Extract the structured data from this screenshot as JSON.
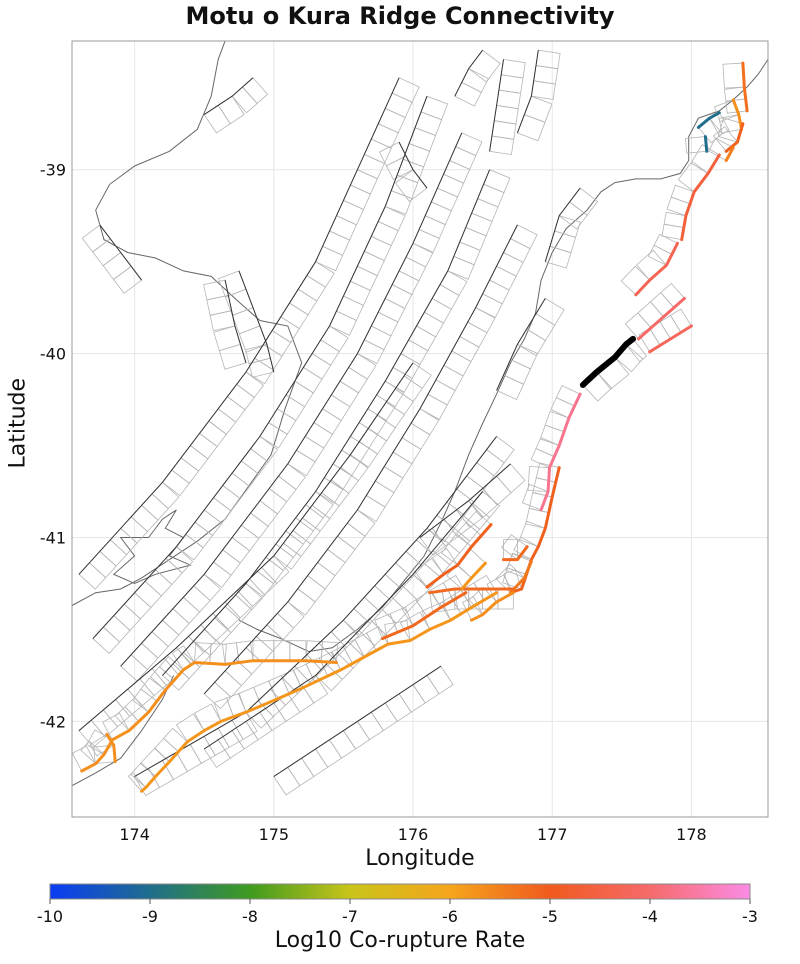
{
  "title": "Motu o Kura Ridge Connectivity",
  "xlabel": "Longitude",
  "ylabel": "Latitude",
  "colorbar_label": "Log10 Co-rupture Rate",
  "colors": {
    "grid": "#e6e6e6",
    "fault_trace": "#333333",
    "fault_patch": "#b5b5b5",
    "coast": "#666666",
    "source_fault": "#000000"
  },
  "chart_data": {
    "type": "map",
    "xlim": [
      173.55,
      178.55
    ],
    "ylim": [
      -42.52,
      -38.3
    ],
    "xticks": [
      174,
      175,
      176,
      177,
      178
    ],
    "yticks": [
      -39,
      -40,
      -41,
      -42
    ],
    "colorbar": {
      "min": -10,
      "max": -3,
      "ticks": [
        -10,
        -9,
        -8,
        -7,
        -6,
        -5,
        -4,
        -3
      ],
      "stops": [
        "#0a3cf5",
        "#1f6e8c",
        "#3f9b1f",
        "#c9c41a",
        "#f5a51c",
        "#f05a1e",
        "#f66a6a",
        "#fb8ce6"
      ]
    },
    "source_fault": {
      "name": "Motu o Kura Ridge",
      "coords": [
        [
          177.22,
          -40.17
        ],
        [
          177.32,
          -40.1
        ],
        [
          177.45,
          -40.02
        ],
        [
          177.53,
          -39.95
        ],
        [
          177.58,
          -39.92
        ]
      ]
    },
    "connected_faults": [
      {
        "rate": -9.0,
        "coords": [
          [
            178.05,
            -38.77
          ],
          [
            178.13,
            -38.72
          ],
          [
            178.2,
            -38.69
          ]
        ]
      },
      {
        "rate": -9.0,
        "coords": [
          [
            178.1,
            -38.82
          ],
          [
            178.11,
            -38.9
          ]
        ]
      },
      {
        "rate": -5.3,
        "coords": [
          [
            178.37,
            -38.42
          ],
          [
            178.38,
            -38.55
          ],
          [
            178.4,
            -38.68
          ]
        ]
      },
      {
        "rate": -5.7,
        "coords": [
          [
            178.3,
            -38.62
          ],
          [
            178.34,
            -38.7
          ],
          [
            178.36,
            -38.78
          ]
        ]
      },
      {
        "rate": -5.1,
        "coords": [
          [
            178.37,
            -38.75
          ],
          [
            178.33,
            -38.85
          ],
          [
            178.25,
            -38.9
          ]
        ]
      },
      {
        "rate": -5.5,
        "coords": [
          [
            178.3,
            -38.88
          ],
          [
            178.25,
            -38.95
          ]
        ]
      },
      {
        "rate": -4.6,
        "coords": [
          [
            178.2,
            -38.92
          ],
          [
            178.12,
            -39.02
          ],
          [
            178.02,
            -39.12
          ],
          [
            177.96,
            -39.25
          ],
          [
            177.93,
            -39.38
          ]
        ]
      },
      {
        "rate": -4.3,
        "coords": [
          [
            177.9,
            -39.4
          ],
          [
            177.82,
            -39.52
          ],
          [
            177.7,
            -39.6
          ],
          [
            177.6,
            -39.68
          ]
        ]
      },
      {
        "rate": -4.0,
        "coords": [
          [
            177.95,
            -39.7
          ],
          [
            177.8,
            -39.8
          ],
          [
            177.62,
            -39.92
          ]
        ]
      },
      {
        "rate": -4.2,
        "coords": [
          [
            178.0,
            -39.85
          ],
          [
            177.85,
            -39.92
          ],
          [
            177.7,
            -39.99
          ]
        ]
      },
      {
        "rate": -3.7,
        "coords": [
          [
            177.2,
            -40.22
          ],
          [
            177.12,
            -40.35
          ],
          [
            177.05,
            -40.5
          ],
          [
            176.98,
            -40.62
          ],
          [
            176.97,
            -40.75
          ],
          [
            176.92,
            -40.85
          ]
        ]
      },
      {
        "rate": -5.1,
        "coords": [
          [
            177.05,
            -40.62
          ],
          [
            177.0,
            -40.78
          ],
          [
            176.95,
            -40.95
          ],
          [
            176.9,
            -41.05
          ],
          [
            176.85,
            -41.12
          ],
          [
            176.78,
            -41.28
          ],
          [
            176.7,
            -41.3
          ]
        ]
      },
      {
        "rate": -5.2,
        "coords": [
          [
            176.82,
            -41.05
          ],
          [
            176.75,
            -41.12
          ],
          [
            176.65,
            -41.12
          ]
        ]
      },
      {
        "rate": -5.1,
        "coords": [
          [
            176.56,
            -40.93
          ],
          [
            176.42,
            -41.05
          ],
          [
            176.32,
            -41.15
          ],
          [
            176.22,
            -41.2
          ],
          [
            176.1,
            -41.27
          ]
        ]
      },
      {
        "rate": -5.4,
        "coords": [
          [
            176.85,
            -41.13
          ],
          [
            176.8,
            -41.22
          ],
          [
            176.7,
            -41.3
          ]
        ]
      },
      {
        "rate": -5.2,
        "coords": [
          [
            176.12,
            -41.3
          ],
          [
            176.3,
            -41.28
          ],
          [
            176.5,
            -41.28
          ],
          [
            176.72,
            -41.28
          ]
        ]
      },
      {
        "rate": -5.2,
        "coords": [
          [
            176.38,
            -41.3
          ],
          [
            176.2,
            -41.38
          ],
          [
            176.0,
            -41.48
          ],
          [
            175.78,
            -41.55
          ]
        ]
      },
      {
        "rate": -5.8,
        "coords": [
          [
            176.52,
            -41.14
          ],
          [
            176.42,
            -41.22
          ],
          [
            176.35,
            -41.28
          ]
        ]
      },
      {
        "rate": -5.7,
        "coords": [
          [
            176.72,
            -41.3
          ],
          [
            176.6,
            -41.35
          ],
          [
            176.5,
            -41.42
          ],
          [
            176.42,
            -41.45
          ]
        ]
      },
      {
        "rate": -5.8,
        "coords": [
          [
            176.6,
            -41.3
          ],
          [
            176.42,
            -41.38
          ],
          [
            176.27,
            -41.45
          ],
          [
            176.12,
            -41.5
          ],
          [
            175.98,
            -41.56
          ],
          [
            175.82,
            -41.58
          ],
          [
            175.65,
            -41.65
          ],
          [
            175.48,
            -41.72
          ],
          [
            175.2,
            -41.82
          ],
          [
            175.02,
            -41.88
          ],
          [
            174.8,
            -41.95
          ],
          [
            174.62,
            -42.0
          ],
          [
            174.5,
            -42.05
          ],
          [
            174.38,
            -42.11
          ],
          [
            174.25,
            -42.22
          ],
          [
            174.15,
            -42.3
          ],
          [
            174.08,
            -42.36
          ],
          [
            174.05,
            -42.38
          ]
        ]
      },
      {
        "rate": -5.7,
        "coords": [
          [
            175.45,
            -41.68
          ],
          [
            175.23,
            -41.67
          ],
          [
            175.0,
            -41.67
          ],
          [
            174.85,
            -41.67
          ],
          [
            174.65,
            -41.69
          ],
          [
            174.43,
            -41.68
          ],
          [
            174.35,
            -41.72
          ],
          [
            174.22,
            -41.83
          ],
          [
            174.1,
            -41.95
          ],
          [
            173.96,
            -42.05
          ],
          [
            173.84,
            -42.1
          ],
          [
            173.78,
            -42.18
          ],
          [
            173.72,
            -42.23
          ],
          [
            173.62,
            -42.27
          ]
        ]
      },
      {
        "rate": -5.7,
        "coords": [
          [
            173.8,
            -42.07
          ],
          [
            173.85,
            -42.13
          ],
          [
            173.86,
            -42.22
          ]
        ]
      }
    ]
  }
}
